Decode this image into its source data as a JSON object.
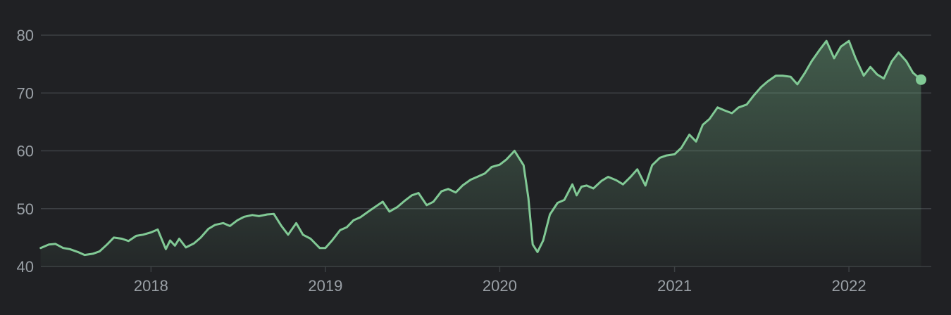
{
  "chart_data": {
    "type": "area",
    "title": "",
    "xlabel": "",
    "ylabel": "",
    "x_ticks": [
      "2018",
      "2019",
      "2020",
      "2021",
      "2022"
    ],
    "y_ticks": [
      40,
      50,
      60,
      70,
      80
    ],
    "xlim": [
      "2017-05-08",
      "2022-06-15"
    ],
    "ylim": [
      40,
      80
    ],
    "grid": true,
    "legend": "none",
    "colors": {
      "background": "#202124",
      "line": "#81c995",
      "fill_top": "#81c995",
      "grid": "#3c4043",
      "tick_text": "#9aa0a6"
    },
    "series": [
      {
        "x": [
          "2017-05-15",
          "2017-06-01",
          "2017-06-15",
          "2017-07-01",
          "2017-07-15",
          "2017-08-01",
          "2017-08-15",
          "2017-09-01",
          "2017-09-15",
          "2017-10-01",
          "2017-10-15",
          "2017-11-01",
          "2017-11-15",
          "2017-12-01",
          "2017-12-15",
          "2018-01-01",
          "2018-01-15",
          "2018-02-01",
          "2018-02-10",
          "2018-02-20",
          "2018-03-01",
          "2018-03-15",
          "2018-04-01",
          "2018-04-15",
          "2018-05-01",
          "2018-05-15",
          "2018-06-01",
          "2018-06-15",
          "2018-07-01",
          "2018-07-15",
          "2018-08-01",
          "2018-08-15",
          "2018-09-01",
          "2018-09-15",
          "2018-10-01",
          "2018-10-15",
          "2018-11-01",
          "2018-11-15",
          "2018-12-01",
          "2018-12-20",
          "2019-01-01",
          "2019-01-15",
          "2019-02-01",
          "2019-02-15",
          "2019-03-01",
          "2019-03-15",
          "2019-04-01",
          "2019-04-15",
          "2019-05-01",
          "2019-05-15",
          "2019-06-01",
          "2019-06-15",
          "2019-07-01",
          "2019-07-15",
          "2019-08-01",
          "2019-08-15",
          "2019-09-01",
          "2019-09-15",
          "2019-10-01",
          "2019-10-15",
          "2019-11-01",
          "2019-11-15",
          "2019-12-01",
          "2019-12-15",
          "2020-01-01",
          "2020-01-15",
          "2020-02-01",
          "2020-02-20",
          "2020-03-01",
          "2020-03-10",
          "2020-03-20",
          "2020-04-01",
          "2020-04-15",
          "2020-05-01",
          "2020-05-15",
          "2020-06-01",
          "2020-06-10",
          "2020-06-20",
          "2020-07-01",
          "2020-07-15",
          "2020-08-01",
          "2020-08-15",
          "2020-09-01",
          "2020-09-15",
          "2020-10-01",
          "2020-10-15",
          "2020-11-01",
          "2020-11-15",
          "2020-12-01",
          "2020-12-15",
          "2021-01-01",
          "2021-01-15",
          "2021-02-01",
          "2021-02-15",
          "2021-03-01",
          "2021-03-15",
          "2021-04-01",
          "2021-04-15",
          "2021-05-01",
          "2021-05-15",
          "2021-06-01",
          "2021-06-15",
          "2021-07-01",
          "2021-07-15",
          "2021-08-01",
          "2021-08-15",
          "2021-09-01",
          "2021-09-15",
          "2021-10-01",
          "2021-10-15",
          "2021-11-01",
          "2021-11-15",
          "2021-12-01",
          "2021-12-15",
          "2022-01-01",
          "2022-01-15",
          "2022-02-01",
          "2022-02-15",
          "2022-03-01",
          "2022-03-15",
          "2022-04-01",
          "2022-04-15",
          "2022-05-01",
          "2022-05-15",
          "2022-06-01"
        ],
        "values": [
          43.2,
          43.8,
          43.9,
          43.2,
          43.0,
          42.5,
          42.0,
          42.2,
          42.6,
          43.8,
          45.0,
          44.8,
          44.4,
          45.3,
          45.5,
          45.9,
          46.4,
          43.0,
          44.5,
          43.6,
          44.8,
          43.3,
          44.0,
          45.0,
          46.5,
          47.2,
          47.5,
          47.0,
          48.0,
          48.6,
          48.9,
          48.7,
          49.0,
          49.1,
          47.0,
          45.5,
          47.5,
          45.5,
          44.8,
          43.2,
          43.2,
          44.5,
          46.3,
          46.8,
          48.0,
          48.5,
          49.5,
          50.3,
          51.2,
          49.5,
          50.3,
          51.3,
          52.3,
          52.7,
          50.6,
          51.2,
          53.0,
          53.4,
          52.8,
          54.0,
          55.0,
          55.5,
          56.1,
          57.2,
          57.6,
          58.5,
          60.0,
          57.5,
          51.8,
          43.8,
          42.5,
          44.5,
          49.0,
          51.0,
          51.5,
          54.2,
          52.3,
          53.8,
          54.0,
          53.5,
          54.8,
          55.5,
          54.9,
          54.2,
          55.5,
          56.8,
          54.0,
          57.5,
          58.8,
          59.2,
          59.4,
          60.5,
          62.8,
          61.6,
          64.5,
          65.5,
          67.5,
          67.0,
          66.5,
          67.5,
          68.0,
          69.5,
          71.0,
          72.0,
          73.0,
          73.0,
          72.8,
          71.5,
          73.5,
          75.5,
          77.5,
          79.0,
          76.0,
          78.0,
          79.0,
          76.0,
          73.0,
          74.5,
          73.2,
          72.5,
          75.5,
          77.0,
          75.5,
          73.5,
          72.3
        ]
      }
    ]
  }
}
